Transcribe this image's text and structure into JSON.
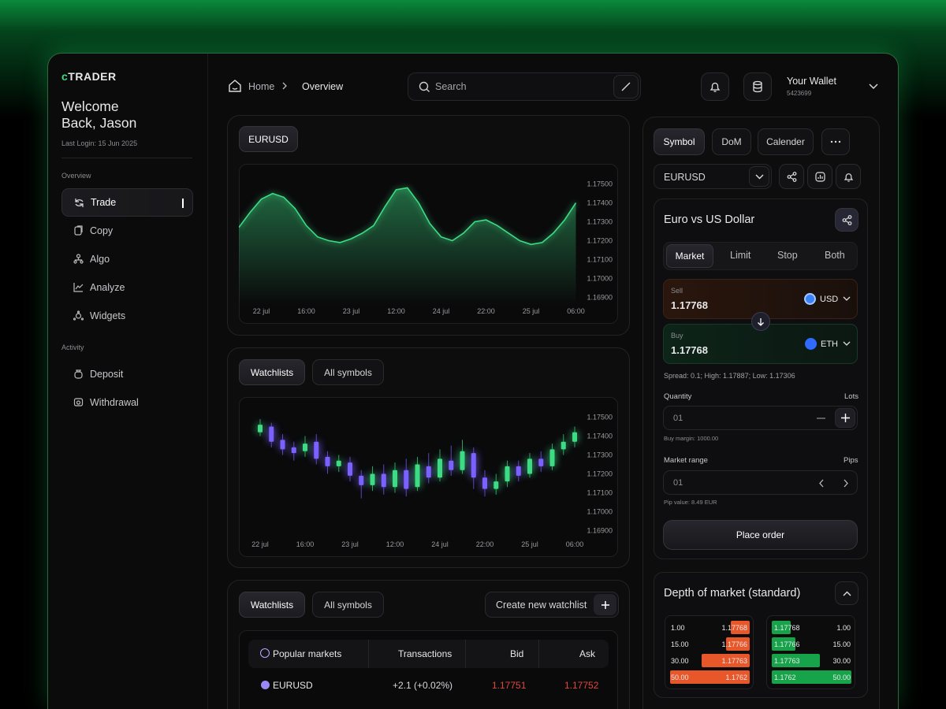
{
  "sidebar": {
    "brand": "cTRADER",
    "welcome": "Welcome Back, Jason",
    "last_login": "Last Login: 15 Jun 2025",
    "sections": [
      {
        "title": "Overview",
        "items": [
          "Trade",
          "Copy",
          "Algo",
          "Analyze",
          "Widgets"
        ]
      },
      {
        "title": "Activity",
        "items": [
          "Deposit",
          "Withdrawal"
        ]
      }
    ]
  },
  "topbar": {
    "breadcrumb": [
      "Home",
      "Overview"
    ],
    "search": "Search",
    "wallet": {
      "title": "Your Wallet",
      "id": "5423699"
    }
  },
  "price_chart": {
    "type": "area",
    "symbol": "EURUSD",
    "categories": [
      null,
      null,
      "22 jul",
      null,
      null,
      null,
      "16:00",
      null,
      null,
      null,
      "23 jul",
      null,
      null,
      null,
      "12:00",
      null,
      null,
      null,
      "24 jul",
      null,
      null,
      null,
      "22:00",
      null,
      null,
      null,
      "25 jul",
      null,
      null,
      null,
      "06:00"
    ],
    "values": [
      1.1727,
      1.1735,
      1.1742,
      1.1745,
      1.1743,
      1.1737,
      1.1728,
      1.1722,
      1.172,
      1.1719,
      1.1721,
      1.1724,
      1.1728,
      1.1738,
      1.1747,
      1.1748,
      1.174,
      1.1729,
      1.1722,
      1.172,
      1.1724,
      1.173,
      1.1731,
      1.1728,
      1.1724,
      1.172,
      1.1718,
      1.1719,
      1.1724,
      1.1731,
      1.174
    ],
    "color": "#3ddc84",
    "ylim": [
      1.1686,
      1.1759
    ],
    "yticks": [
      {
        "value": 1.175,
        "label": "1.17500"
      },
      {
        "value": 1.174,
        "label": "1.17400"
      },
      {
        "value": 1.173,
        "label": "1.17300"
      },
      {
        "value": 1.172,
        "label": "1.17200"
      },
      {
        "value": 1.171,
        "label": "1.17100"
      },
      {
        "value": 1.17,
        "label": "1.17000"
      },
      {
        "value": 1.169,
        "label": "1.16900"
      }
    ]
  },
  "watchlist_chart": {
    "type": "candlestick",
    "tabs": [
      "Watchlists",
      "All symbols"
    ],
    "categories": [
      "22 jul",
      null,
      null,
      null,
      "16:00",
      null,
      null,
      null,
      "23 jul",
      null,
      null,
      null,
      "12:00",
      null,
      null,
      null,
      "24 jul",
      null,
      null,
      null,
      "22:00",
      null,
      null,
      null,
      "25 jul",
      null,
      null,
      null,
      "06:00"
    ],
    "open": [
      1.1742,
      1.1745,
      1.1738,
      1.1734,
      1.1732,
      1.1737,
      1.1729,
      1.1724,
      1.1726,
      1.1719,
      1.1714,
      1.172,
      1.1713,
      1.1722,
      1.1713,
      1.1724,
      1.1718,
      1.1727,
      1.1722,
      1.1731,
      1.1718,
      1.1712,
      1.1716,
      1.1724,
      1.172,
      1.1728,
      1.1724,
      1.1733,
      1.1737
    ],
    "high": [
      1.1749,
      1.1747,
      1.1741,
      1.1737,
      1.174,
      1.1741,
      1.1732,
      1.173,
      1.1729,
      1.1722,
      1.1724,
      1.1725,
      1.1726,
      1.1728,
      1.1729,
      1.1731,
      1.1733,
      1.1735,
      1.1738,
      1.1734,
      1.1722,
      1.172,
      1.1727,
      1.1727,
      1.1731,
      1.1732,
      1.1736,
      1.1741,
      1.1745
    ],
    "low": [
      1.174,
      1.1734,
      1.173,
      1.1727,
      1.1729,
      1.1725,
      1.172,
      1.1721,
      1.1716,
      1.1707,
      1.1711,
      1.1709,
      1.171,
      1.1708,
      1.1711,
      1.1715,
      1.1716,
      1.1719,
      1.172,
      1.1712,
      1.1708,
      1.1709,
      1.1713,
      1.1716,
      1.1718,
      1.1721,
      1.1722,
      1.173,
      1.1734
    ],
    "close": [
      1.1746,
      1.1737,
      1.1733,
      1.1731,
      1.1736,
      1.1728,
      1.1724,
      1.1727,
      1.1719,
      1.1714,
      1.172,
      1.1713,
      1.1722,
      1.1712,
      1.1725,
      1.1718,
      1.1728,
      1.1722,
      1.1732,
      1.1718,
      1.1712,
      1.1716,
      1.1724,
      1.1719,
      1.1728,
      1.1724,
      1.1733,
      1.1737,
      1.1742
    ],
    "up_color": "#3ddc84",
    "down_color": "#7b61ff",
    "ylim": [
      1.1686,
      1.1759
    ],
    "yticks": [
      {
        "value": 1.175,
        "label": "1.17500"
      },
      {
        "value": 1.174,
        "label": "1.17400"
      },
      {
        "value": 1.173,
        "label": "1.17300"
      },
      {
        "value": 1.172,
        "label": "1.17200"
      },
      {
        "value": 1.171,
        "label": "1.17100"
      },
      {
        "value": 1.17,
        "label": "1.17000"
      },
      {
        "value": 1.169,
        "label": "1.16900"
      }
    ]
  },
  "watchlist": {
    "tabs": [
      "Watchlists",
      "All symbols"
    ],
    "create_button": "Create new watchlist",
    "table": {
      "header": [
        "Popular markets",
        "Transactions",
        "Bid",
        "Ask"
      ],
      "rows": [
        [
          "EURUSD",
          "+2.1 (+0.02%)",
          "1.17751",
          "1.17752"
        ]
      ]
    }
  },
  "order_panel": {
    "tabs": [
      "Symbol",
      "DoM",
      "Calender"
    ],
    "symbol": "EURUSD",
    "title": "Euro vs US Dollar",
    "order_types": [
      "Market",
      "Limit",
      "Stop",
      "Both"
    ],
    "sell": {
      "label": "Sell",
      "price": "1.17768",
      "currency": "USD"
    },
    "buy": {
      "label": "Buy",
      "price": "1.17768",
      "currency": "ETH"
    },
    "spread": "Spread: 0.1; High: 1.17887; Low: 1.17306",
    "quantity": {
      "label": "Quantity",
      "unit": "Lots",
      "value": "01",
      "note": "Buy margin: 1000.00"
    },
    "market_range": {
      "label": "Market range",
      "unit": "Pips",
      "value": "01",
      "note": "Pip value: 8.49 EUR"
    },
    "submit": "Place order"
  },
  "depth": {
    "title": "Depth of market (standard)",
    "sell": {
      "values": [
        1,
        15,
        30,
        50
      ],
      "value_labels": [
        "1.00",
        "15.00",
        "30.00",
        "50.00"
      ],
      "prices": [
        "1.17768",
        "1.17766",
        "1.17763",
        "1.1762"
      ],
      "color": "#e8572a"
    },
    "buy": {
      "values": [
        1,
        15,
        30,
        50
      ],
      "value_labels": [
        "1.00",
        "15.00",
        "30.00",
        "50.00"
      ],
      "prices": [
        "1.17768",
        "1.17766",
        "1.17763",
        "1.1762"
      ],
      "color": "#16a34a"
    }
  }
}
